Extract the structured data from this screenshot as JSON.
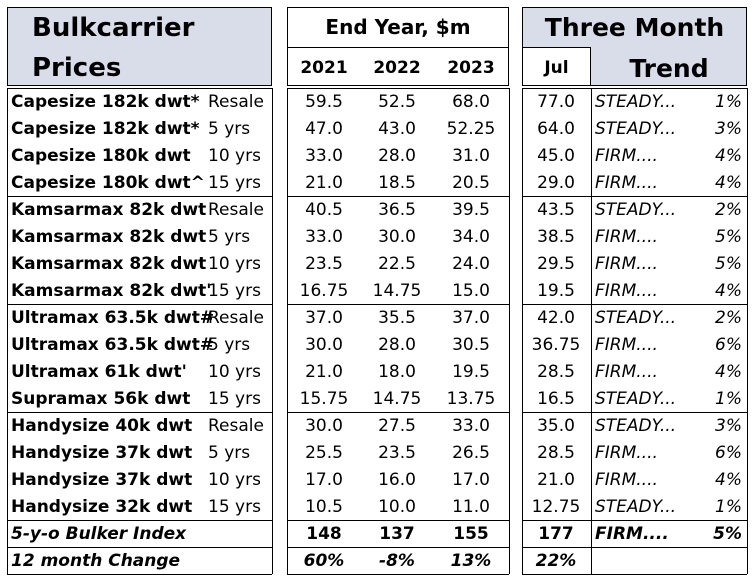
{
  "title_line1": "Bulkcarrier",
  "title_line2": "Prices",
  "end_year_header": "End Year, $m",
  "three_month_header": "Three Month",
  "trend_header": "Trend",
  "years": [
    "2021",
    "2022",
    "2023"
  ],
  "month": "Jul",
  "rows": [
    {
      "name": "Capesize 182k dwt*",
      "age": "Resale",
      "v2021": "59.5",
      "v2022": "52.5",
      "v2023": "68.0",
      "jul": "77.0",
      "trend": "STEADY...",
      "pct": "1%"
    },
    {
      "name": "Capesize 182k dwt*",
      "age": "5 yrs",
      "v2021": "47.0",
      "v2022": "43.0",
      "v2023": "52.25",
      "jul": "64.0",
      "trend": "STEADY...",
      "pct": "3%"
    },
    {
      "name": "Capesize 180k dwt",
      "age": "10 yrs",
      "v2021": "33.0",
      "v2022": "28.0",
      "v2023": "31.0",
      "jul": "45.0",
      "trend": "FIRM....",
      "pct": "4%"
    },
    {
      "name": "Capesize 180k dwt^",
      "age": "15 yrs",
      "v2021": "21.0",
      "v2022": "18.5",
      "v2023": "20.5",
      "jul": "29.0",
      "trend": "FIRM....",
      "pct": "4%"
    },
    {
      "name": "Kamsarmax 82k dwt",
      "age": "Resale",
      "v2021": "40.5",
      "v2022": "36.5",
      "v2023": "39.5",
      "jul": "43.5",
      "trend": "STEADY...",
      "pct": "2%"
    },
    {
      "name": "Kamsarmax 82k dwt",
      "age": "5 yrs",
      "v2021": "33.0",
      "v2022": "30.0",
      "v2023": "34.0",
      "jul": "38.5",
      "trend": "FIRM....",
      "pct": "5%"
    },
    {
      "name": "Kamsarmax 82k dwt",
      "age": "10 yrs",
      "v2021": "23.5",
      "v2022": "22.5",
      "v2023": "24.0",
      "jul": "29.5",
      "trend": "FIRM....",
      "pct": "5%"
    },
    {
      "name": "Kamsarmax 82k dwt'",
      "age": "15 yrs",
      "v2021": "16.75",
      "v2022": "14.75",
      "v2023": "15.0",
      "jul": "19.5",
      "trend": "FIRM....",
      "pct": "4%"
    },
    {
      "name": "Ultramax 63.5k dwt#",
      "age": "Resale",
      "v2021": "37.0",
      "v2022": "35.5",
      "v2023": "37.0",
      "jul": "42.0",
      "trend": "STEADY...",
      "pct": "2%"
    },
    {
      "name": "Ultramax 63.5k dwt#",
      "age": "5 yrs",
      "v2021": "30.0",
      "v2022": "28.0",
      "v2023": "30.5",
      "jul": "36.75",
      "trend": "FIRM....",
      "pct": "6%"
    },
    {
      "name": "Ultramax 61k dwt'",
      "age": "10 yrs",
      "v2021": "21.0",
      "v2022": "18.0",
      "v2023": "19.5",
      "jul": "28.5",
      "trend": "FIRM....",
      "pct": "4%"
    },
    {
      "name": "Supramax 56k dwt",
      "age": "15 yrs",
      "v2021": "15.75",
      "v2022": "14.75",
      "v2023": "13.75",
      "jul": "16.5",
      "trend": "STEADY...",
      "pct": "1%"
    },
    {
      "name": "Handysize 40k dwt",
      "age": "Resale",
      "v2021": "30.0",
      "v2022": "27.5",
      "v2023": "33.0",
      "jul": "35.0",
      "trend": "STEADY...",
      "pct": "3%"
    },
    {
      "name": "Handysize 37k dwt",
      "age": "5 yrs",
      "v2021": "25.5",
      "v2022": "23.5",
      "v2023": "26.5",
      "jul": "28.5",
      "trend": "FIRM....",
      "pct": "6%"
    },
    {
      "name": "Handysize 37k dwt",
      "age": "10 yrs",
      "v2021": "17.0",
      "v2022": "16.0",
      "v2023": "17.0",
      "jul": "21.0",
      "trend": "FIRM....",
      "pct": "4%"
    },
    {
      "name": "Handysize 32k dwt",
      "age": "15 yrs",
      "v2021": "10.5",
      "v2022": "10.0",
      "v2023": "11.0",
      "jul": "12.75",
      "trend": "STEADY...",
      "pct": "1%"
    }
  ],
  "index_row": {
    "name": "5-y-o Bulker Index",
    "v2021": "148",
    "v2022": "137",
    "v2023": "155",
    "jul": "177",
    "trend": "FIRM....",
    "pct": "5%"
  },
  "change_row": {
    "name": "12 month Change",
    "v2021": "60%",
    "v2022": "-8%",
    "v2023": "13%",
    "jul": "22%"
  }
}
